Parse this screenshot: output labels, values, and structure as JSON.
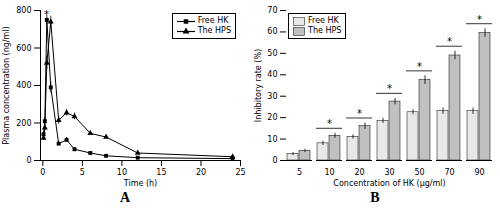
{
  "chart_data": [
    {
      "type": "line",
      "title": "A",
      "xlabel": "Time (h)",
      "ylabel": "Plasma concentration (ng/ml)",
      "xlim": [
        -0.3,
        25
      ],
      "xticks": [
        0,
        5,
        10,
        15,
        20,
        25
      ],
      "ylim": [
        0,
        800
      ],
      "yticks": [
        0,
        200,
        400,
        600,
        800
      ],
      "x": [
        0.083,
        0.25,
        0.5,
        1.0,
        2.0,
        3.0,
        4.0,
        6.0,
        8.0,
        12.0,
        24.0
      ],
      "series": [
        {
          "name": "Free HK",
          "color": "black",
          "marker": "square",
          "values": [
            140,
            210,
            750,
            390,
            90,
            110,
            60,
            40,
            25,
            15,
            10
          ],
          "errors": [
            15,
            20,
            25,
            30,
            8,
            12,
            7,
            5,
            4,
            3,
            2
          ]
        },
        {
          "name": "The HPS",
          "color": "black",
          "marker": "triangle",
          "values": [
            120,
            175,
            520,
            740,
            215,
            255,
            235,
            145,
            125,
            40,
            20
          ],
          "errors": [
            12,
            18,
            35,
            30,
            22,
            18,
            18,
            12,
            10,
            4,
            3
          ]
        }
      ],
      "legend": "upper right",
      "annotations": [
        {
          "text": "*",
          "x": 0.45,
          "y": 775
        }
      ]
    },
    {
      "type": "bar",
      "title": "B",
      "xlabel": "Concentration of HK (μg/ml)",
      "ylabel": "Inhibitory rate (%)",
      "ylim": [
        0,
        70
      ],
      "yticks": [
        0,
        10,
        20,
        30,
        40,
        50,
        60,
        70
      ],
      "categories": [
        "5",
        "10",
        "20",
        "30",
        "50",
        "70",
        "90"
      ],
      "series": [
        {
          "name": "Free HK",
          "color": "#e8e8e8",
          "values": [
            3.0,
            8.0,
            11.0,
            18.5,
            22.5,
            23.0,
            23.0
          ],
          "errors": [
            0.7,
            1.0,
            1.0,
            1.2,
            1.2,
            1.5,
            1.5
          ]
        },
        {
          "name": "The HPS",
          "color": "#c0c0c0",
          "values": [
            4.5,
            11.5,
            16.0,
            27.5,
            37.5,
            49.0,
            59.5
          ],
          "errors": [
            0.8,
            1.2,
            1.5,
            1.5,
            2.0,
            2.0,
            2.0
          ]
        }
      ],
      "legend": "upper left",
      "annotations": [
        {
          "text": "*",
          "category": "10"
        },
        {
          "text": "*",
          "category": "20"
        },
        {
          "text": "*",
          "category": "30"
        },
        {
          "text": "*",
          "category": "50"
        },
        {
          "text": "*",
          "category": "70"
        },
        {
          "text": "*",
          "category": "90"
        }
      ]
    }
  ]
}
